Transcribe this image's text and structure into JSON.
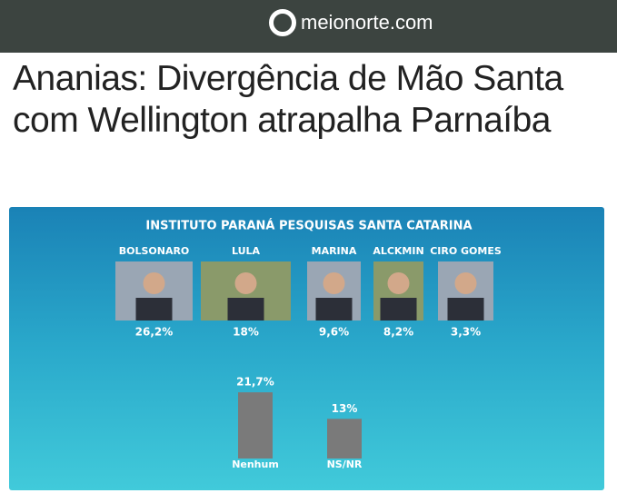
{
  "header": {
    "logo": "meionorte.com"
  },
  "article": {
    "title": "Ananias: Divergência de Mão Santa com Wellington atrapalha Parnaíba"
  },
  "chart_data": {
    "type": "bar",
    "title": "INSTITUTO PARANÁ PESQUISAS SANTA CATARINA",
    "candidates": [
      {
        "name": "BOLSONARO",
        "percent": "26,2%"
      },
      {
        "name": "LULA",
        "percent": "18%"
      },
      {
        "name": "MARINA",
        "percent": "9,6%"
      },
      {
        "name": "ALCKMIN",
        "percent": "8,2%"
      },
      {
        "name": "CIRO GOMES",
        "percent": "3,3%"
      }
    ],
    "categories": [
      "Nenhum",
      "NS/NR"
    ],
    "values": [
      21.7,
      13
    ],
    "value_labels": [
      "21,7%",
      "13%"
    ],
    "color": "#7a7a7a"
  }
}
